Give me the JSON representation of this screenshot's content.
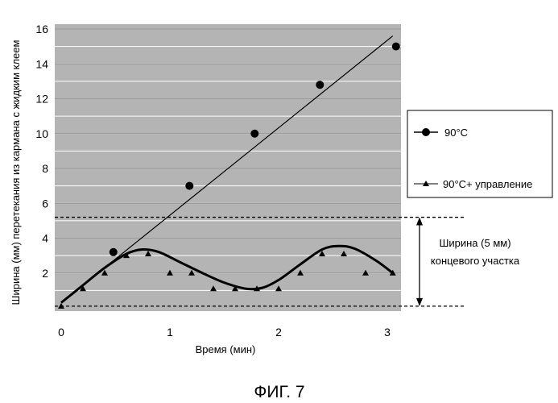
{
  "chart_data": {
    "type": "scatter",
    "xlabel": "Время (мин)",
    "ylabel": "Ширина (мм) перетекания из кармана с жидким клеем",
    "xlim": [
      -0.05,
      3.1
    ],
    "ylim": [
      0,
      16
    ],
    "xticks": [
      "0",
      "1",
      "2",
      "3"
    ],
    "yticks": [
      "2",
      "4",
      "6",
      "8",
      "10",
      "12",
      "14",
      "16"
    ],
    "grid": "horizontal",
    "legend_position": "right",
    "series": [
      {
        "name": "90°C",
        "marker": "circle",
        "x": [
          0.48,
          1.18,
          1.78,
          2.38,
          3.08
        ],
        "y": [
          3.2,
          7.0,
          10.0,
          12.8,
          15.0
        ],
        "trend_line": {
          "x": [
            0.0,
            3.05
          ],
          "y": [
            0.3,
            15.6
          ]
        }
      },
      {
        "name": "90°C+ управление",
        "marker": "triangle",
        "x": [
          0.0,
          0.2,
          0.4,
          0.6,
          0.8,
          1.0,
          1.2,
          1.4,
          1.6,
          1.8,
          2.0,
          2.2,
          2.4,
          2.6,
          2.8,
          3.05
        ],
        "y": [
          0.1,
          1.1,
          2.0,
          3.0,
          3.1,
          2.0,
          2.0,
          1.1,
          1.1,
          1.1,
          1.1,
          2.0,
          3.1,
          3.1,
          2.0,
          2.0
        ],
        "fit_curve": {
          "x": [
            0.0,
            0.2,
            0.4,
            0.6,
            0.75,
            0.9,
            1.1,
            1.3,
            1.5,
            1.7,
            1.85,
            2.0,
            2.2,
            2.4,
            2.55,
            2.7,
            2.9,
            3.05
          ],
          "y": [
            0.3,
            1.3,
            2.3,
            3.1,
            3.35,
            3.2,
            2.6,
            2.0,
            1.45,
            1.1,
            1.15,
            1.6,
            2.5,
            3.35,
            3.55,
            3.4,
            2.7,
            2.0
          ]
        }
      }
    ],
    "annotation": {
      "line1": "Ширина (5 мм)",
      "line2": "концевого участка",
      "y_from": 0.1,
      "y_to": 5.2
    }
  },
  "figure_caption": "ФИГ. 7",
  "colors": {
    "plot_background": "#b4b4b4",
    "ink": "#000000"
  }
}
